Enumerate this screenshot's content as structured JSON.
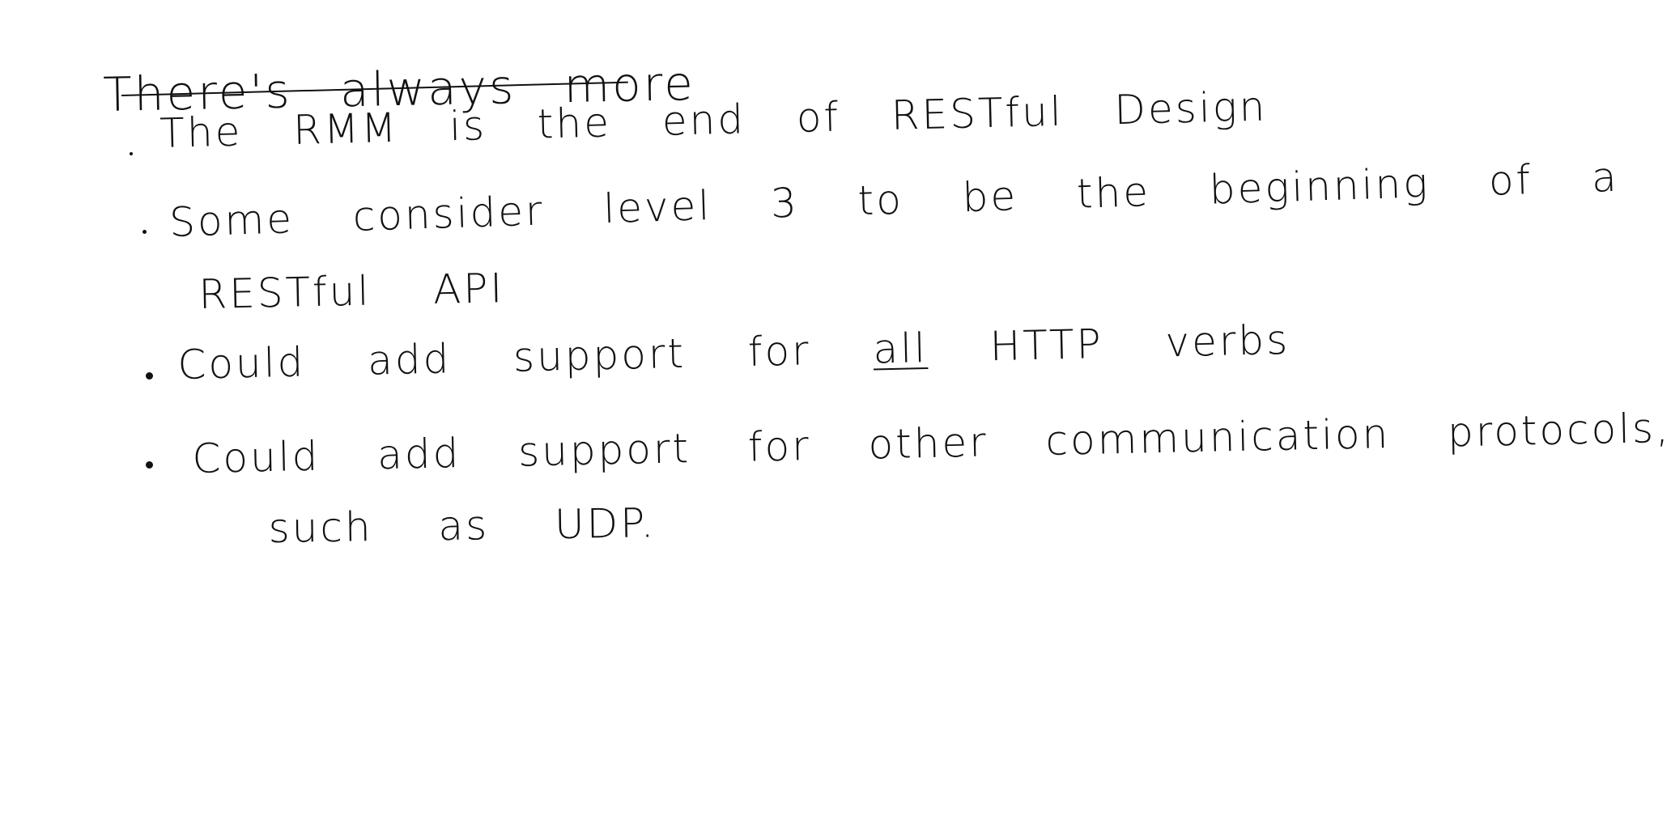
{
  "note": {
    "title": "There's always more",
    "items": [
      {
        "lines": [
          "The RMM is the end of RESTful Design"
        ]
      },
      {
        "lines": [
          "Some consider level 3 to be the beginning of a",
          "RESTful API"
        ]
      },
      {
        "line_prefix": "Could add support for ",
        "underlined_word": "all",
        "line_suffix": " HTTP verbs"
      },
      {
        "lines": [
          "Could add support for other communication protocols,",
          "such as UDP."
        ]
      }
    ]
  }
}
